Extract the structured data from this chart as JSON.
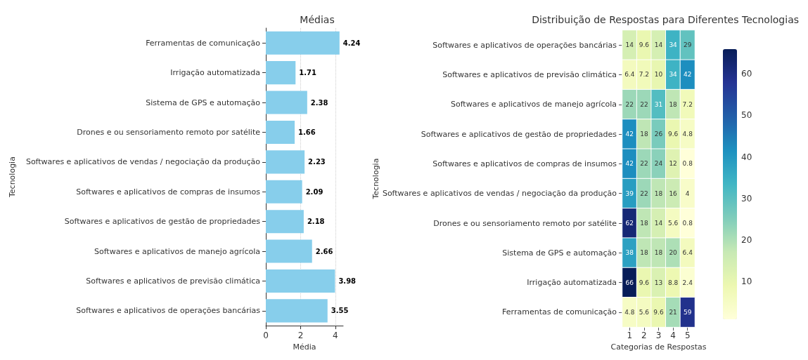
{
  "chart_data": [
    {
      "type": "bar",
      "orientation": "horizontal",
      "title": "Médias",
      "xlabel": "Média",
      "ylabel": "Tecnologia",
      "categories": [
        "Ferramentas de comunicação",
        "Irrigação automatizada",
        "Sistema de GPS e automação",
        "Drones e ou sensoriamento remoto por satélite",
        "Softwares e aplicativos de vendas / negociação da produção",
        "Softwares e aplicativos de compras de insumos",
        "Softwares e aplicativos de gestão de propriedades",
        "Softwares e aplicativos de manejo agrícola",
        "Softwares e aplicativos de previsão climática",
        "Softwares e aplicativos de operações bancárias"
      ],
      "values": [
        4.24,
        1.71,
        2.38,
        1.66,
        2.23,
        2.09,
        2.18,
        2.66,
        3.98,
        3.55
      ],
      "color": "#87ceeb",
      "xlim": [
        0,
        4.45
      ],
      "xticks": [
        0,
        2,
        4
      ],
      "grid": "x",
      "data_labels": true
    },
    {
      "type": "heatmap",
      "title": "Distribuição de Respostas para Diferentes Tecnologias",
      "xlabel": "Categorias de Respostas",
      "ylabel": "Tecnologia",
      "categories": [
        "1",
        "2",
        "3",
        "4",
        "5"
      ],
      "y_categories": [
        "Softwares e aplicativos de operações bancárias",
        "Softwares e aplicativos de previsão climática",
        "Softwares e aplicativos de manejo agrícola",
        "Softwares e aplicativos de gestão de propriedades",
        "Softwares e aplicativos de compras de insumos",
        "Softwares e aplicativos de vendas / negociação da produção",
        "Drones e ou sensoriamento remoto por satélite",
        "Sistema de GPS e automação",
        "Irrigação automatizada",
        "Ferramentas de comunicação"
      ],
      "cells": [
        [
          14,
          9.6,
          14,
          34,
          29
        ],
        [
          6.4,
          7.2,
          10,
          34,
          42
        ],
        [
          22,
          22,
          31,
          18,
          7.2
        ],
        [
          42,
          18,
          26,
          9.6,
          4.8
        ],
        [
          42,
          22,
          24,
          12,
          0.8
        ],
        [
          39,
          22,
          18,
          16,
          4
        ],
        [
          62,
          18,
          14,
          5.6,
          0.8
        ],
        [
          38,
          18,
          18,
          20,
          6.4
        ],
        [
          66,
          9.6,
          13,
          8.8,
          2.4
        ],
        [
          4.8,
          5.6,
          9.6,
          21,
          59
        ]
      ],
      "clim": [
        0.8,
        66
      ],
      "cticks": [
        10,
        20,
        30,
        40,
        50,
        60
      ],
      "data_labels": true
    }
  ]
}
